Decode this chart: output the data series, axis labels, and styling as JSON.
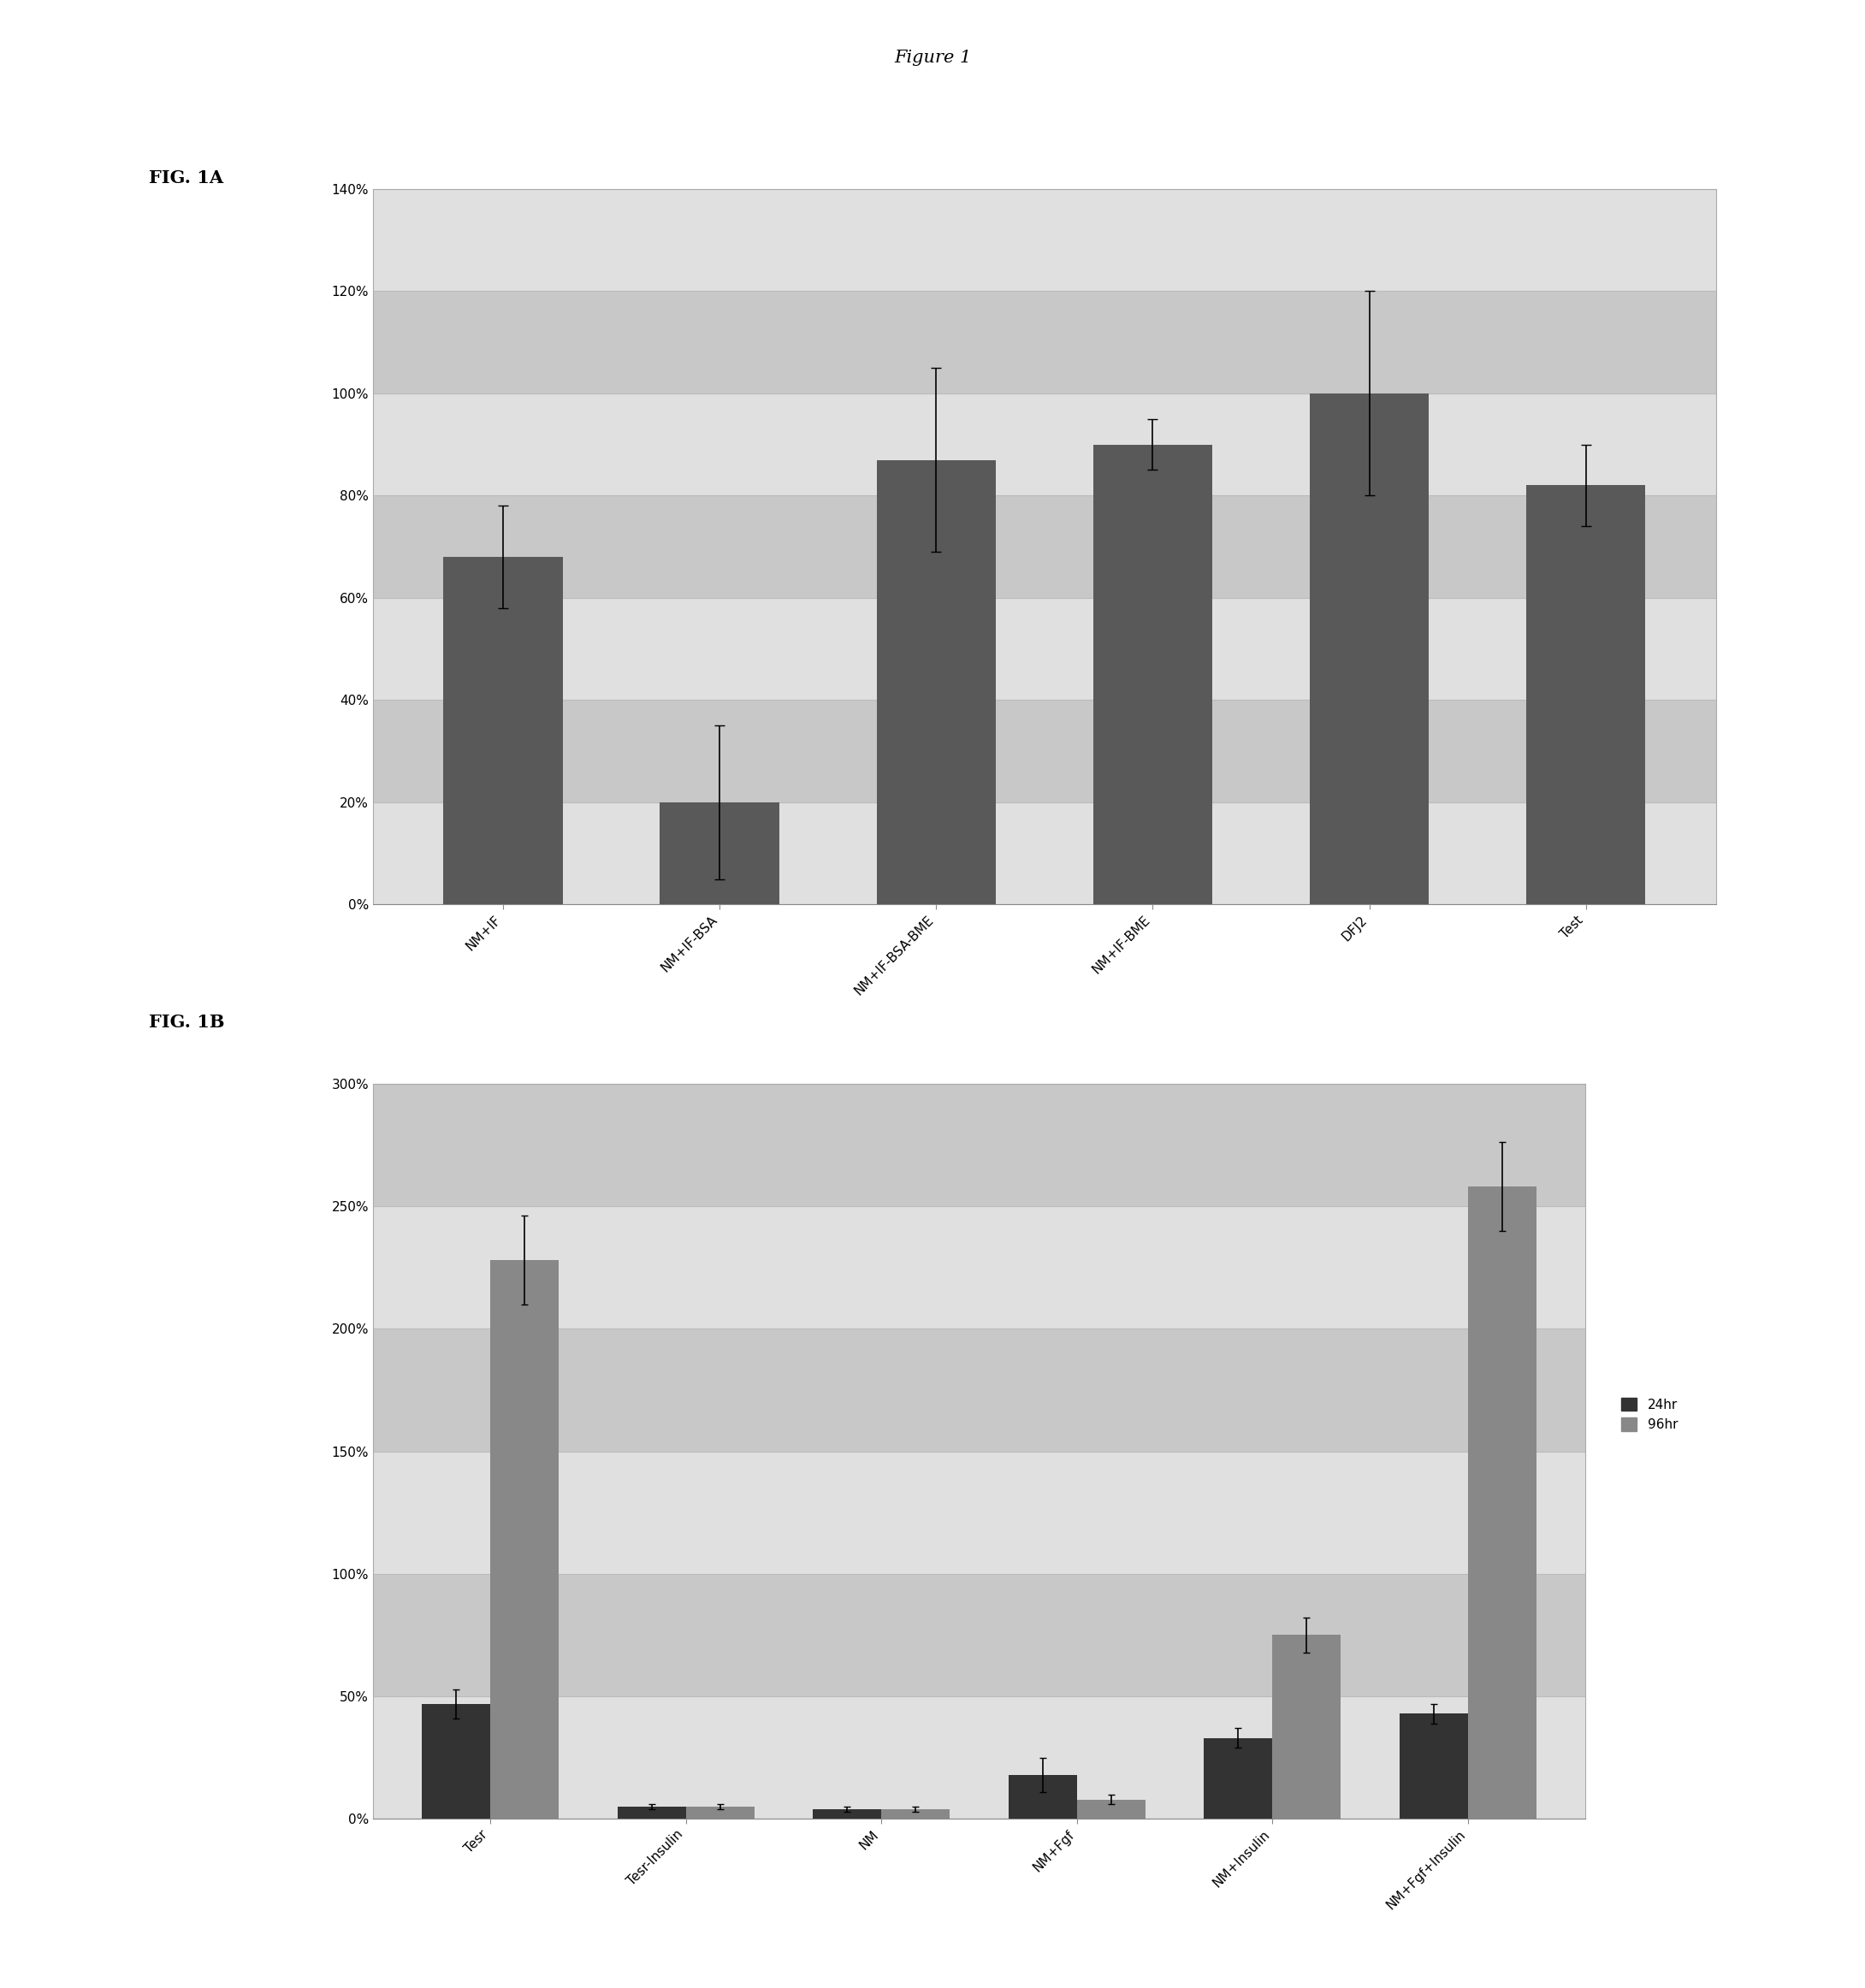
{
  "fig_title": "Figure 1",
  "fig1a_label": "FIG. 1A",
  "fig1b_label": "FIG. 1B",
  "fig1a": {
    "categories": [
      "NM+IF",
      "NM+IF-BSA",
      "NM+IF-BSA-BME",
      "NM+IF-BME",
      "DFJ2",
      "Test"
    ],
    "values": [
      68,
      20,
      87,
      90,
      100,
      82
    ],
    "errors": [
      10,
      15,
      18,
      5,
      20,
      8
    ],
    "bar_color": "#595959",
    "ylim": [
      0,
      1.4
    ],
    "yticks": [
      0.0,
      0.2,
      0.4,
      0.6,
      0.8,
      1.0,
      1.2,
      1.4
    ],
    "ytick_labels": [
      "0%",
      "20%",
      "40%",
      "60%",
      "80%",
      "100%",
      "120%",
      "140%"
    ],
    "grid_color": "#bbbbbb",
    "facecolor_light": "#e0e0e0",
    "facecolor_dark": "#c8c8c8"
  },
  "fig1b": {
    "categories": [
      "Tesr",
      "Tesr-Insulin",
      "NM",
      "NM+Fgf",
      "NM+Insulin",
      "NM+Fgf+Insulin"
    ],
    "values_24hr": [
      47,
      5,
      4,
      18,
      33,
      43
    ],
    "values_96hr": [
      228,
      5,
      4,
      8,
      75,
      258
    ],
    "errors_24hr": [
      6,
      1,
      1,
      7,
      4,
      4
    ],
    "errors_96hr": [
      18,
      1,
      1,
      2,
      7,
      18
    ],
    "bar_color_24hr": "#333333",
    "bar_color_96hr": "#888888",
    "ylim": [
      0,
      3.0
    ],
    "yticks": [
      0.0,
      0.5,
      1.0,
      1.5,
      2.0,
      2.5,
      3.0
    ],
    "ytick_labels": [
      "0%",
      "50%",
      "100%",
      "150%",
      "200%",
      "250%",
      "300%"
    ],
    "legend_24hr": "24hr",
    "legend_96hr": "96hr",
    "grid_color": "#bbbbbb",
    "facecolor_light": "#e0e0e0",
    "facecolor_dark": "#c8c8c8"
  },
  "page_bg": "#f0f0f0",
  "background_color": "#ffffff",
  "bar_edge_color": "none",
  "title_fontsize": 15,
  "tick_fontsize": 11,
  "fig_label_fontsize": 15
}
